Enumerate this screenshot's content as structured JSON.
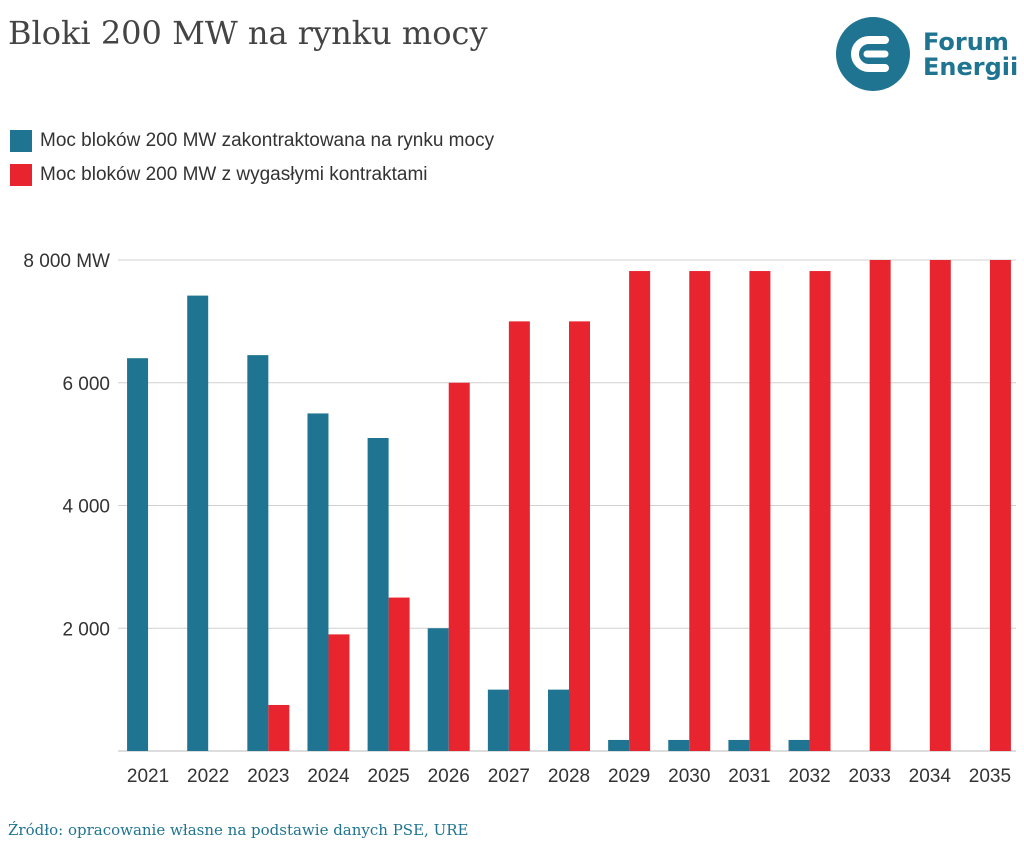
{
  "title": "Bloki 200 MW na rynku mocy",
  "logo": {
    "line1": "Forum",
    "line2": "Energii",
    "color": "#1f7491",
    "accent": "#e8252e",
    "icon": "forum-energii-logo-icon"
  },
  "source": "Źródło: opracowanie własne na podstawie danych PSE, URE",
  "colors": {
    "series1": "#1f7491",
    "series2": "#e8252e",
    "grid": "#d0d0d0",
    "text": "#333333"
  },
  "chart_data": {
    "type": "bar",
    "categories": [
      "2021",
      "2022",
      "2023",
      "2024",
      "2025",
      "2026",
      "2027",
      "2028",
      "2029",
      "2030",
      "2031",
      "2032",
      "2033",
      "2034",
      "2035"
    ],
    "series": [
      {
        "name": "Moc bloków 200 MW zakontraktowana na rynku mocy",
        "color": "#1f7491",
        "values": [
          6400,
          7420,
          6450,
          5500,
          5100,
          2000,
          1000,
          1000,
          180,
          180,
          180,
          180,
          0,
          0,
          0
        ]
      },
      {
        "name": "Moc bloków 200 MW z wygasłymi kontraktami",
        "color": "#e8252e",
        "values": [
          0,
          0,
          750,
          1900,
          2500,
          6000,
          7000,
          7000,
          7820,
          7820,
          7820,
          7820,
          8000,
          8000,
          8000
        ]
      }
    ],
    "yticks": [
      2000,
      4000,
      6000,
      8000
    ],
    "ytick_labels": [
      "2 000",
      "4 000",
      "6 000",
      "8 000 MW"
    ],
    "ylim": [
      0,
      8000
    ],
    "legend": "top-left",
    "grid": true
  }
}
